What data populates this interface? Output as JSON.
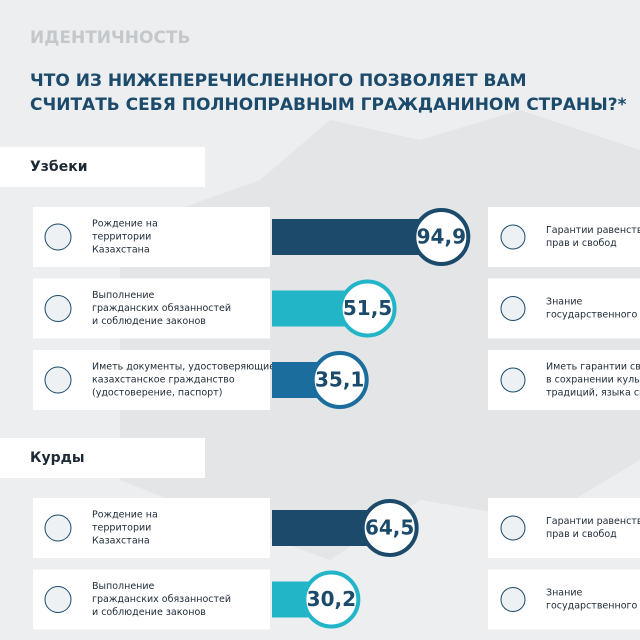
{
  "header": {
    "section": "ИДЕНТИЧНОСТЬ",
    "title_lines": [
      "ЧТО ИЗ НИЖЕПЕРЕЧИСЛЕННОГО ПОЗВОЛЯЕТ ВАМ",
      "СЧИТАТЬ СЕБЯ ПОЛНОПРАВНЫМ ГРАЖДАНИНОМ СТРАНЫ?*"
    ]
  },
  "chart_data": [
    {
      "type": "bar",
      "title": "Узбеки",
      "categories": [
        [
          "Рождение на",
          "территории",
          "Казахстана"
        ],
        [
          "Выполнение",
          "гражданских обязанностей",
          "и соблюдение законов"
        ],
        [
          "Иметь документы, удостоверяющие",
          "казахстанское гражданство",
          "(удостоверение, паспорт)"
        ]
      ],
      "values": [
        94.9,
        51.5,
        35.1
      ],
      "value_labels": [
        "94,9",
        "51,5",
        "35,1"
      ],
      "colors": [
        "#1b4a6b",
        "#22b5c8",
        "#1a6d9c"
      ],
      "side_categories": [
        [
          "Гарантии равенства",
          "прав и свобод"
        ],
        [
          "Знание",
          "государственного язы"
        ],
        [
          "Иметь гарантии сво",
          "в сохранении культу",
          "традиций, языка сво"
        ]
      ]
    },
    {
      "type": "bar",
      "title": "Курды",
      "categories": [
        [
          "Рождение на",
          "территории",
          "Казахстана"
        ],
        [
          "Выполнение",
          "гражданских обязанностей",
          "и соблюдение законов"
        ]
      ],
      "values": [
        64.5,
        30.2
      ],
      "value_labels": [
        "64,5",
        "30,2"
      ],
      "colors": [
        "#1b4a6b",
        "#22b5c8"
      ],
      "side_categories": [
        [
          "Гарантии равенства",
          "прав и свобод"
        ],
        [
          "Знание",
          "государственного язы"
        ]
      ]
    }
  ]
}
